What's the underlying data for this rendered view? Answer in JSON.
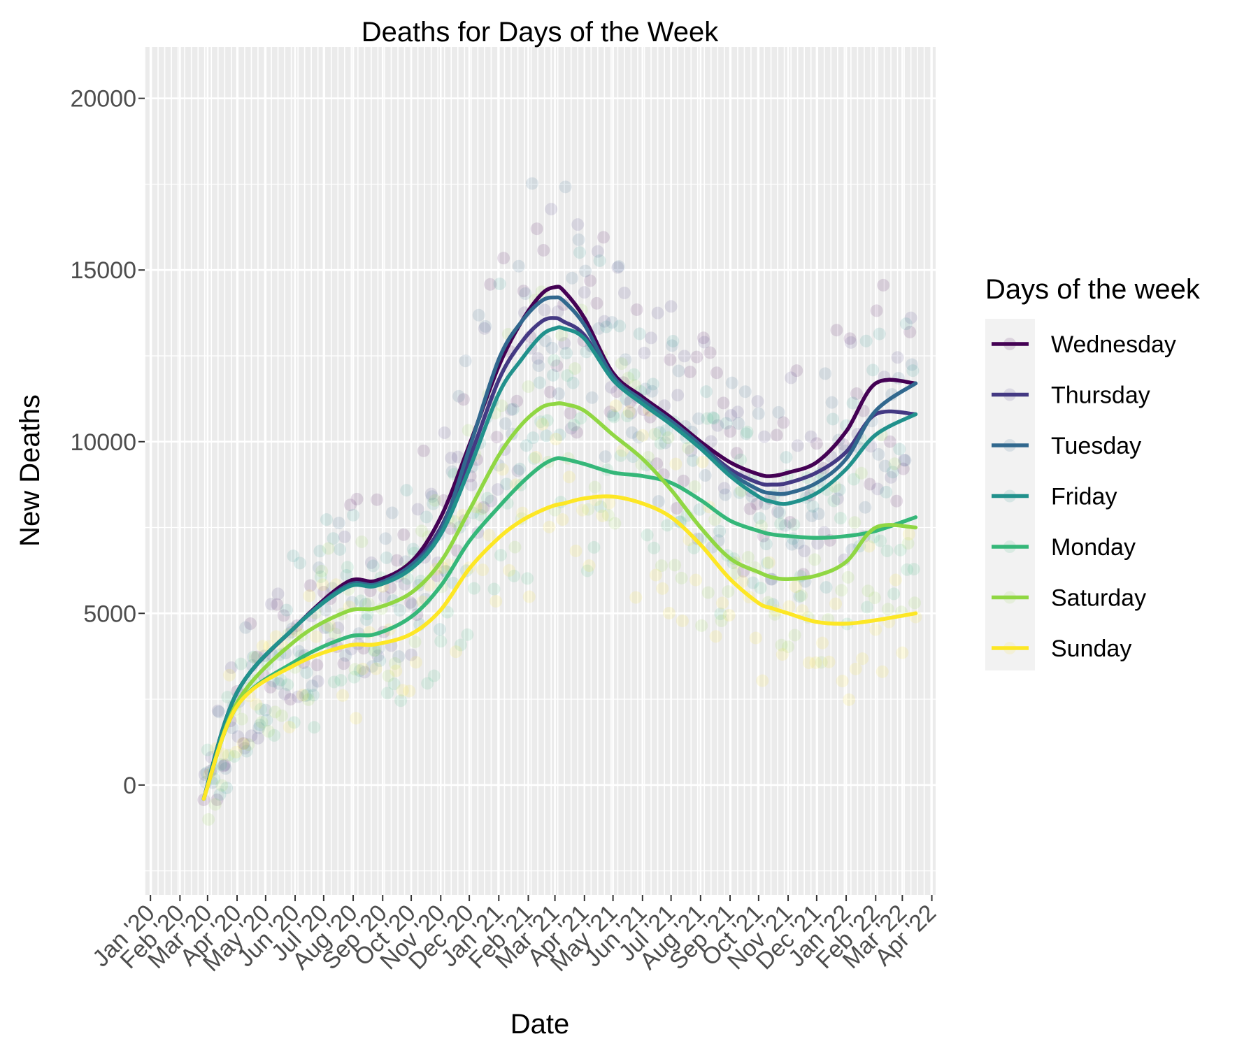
{
  "chart_data": {
    "type": "line",
    "title": "Deaths for Days of the Week",
    "xlabel": "Date",
    "ylabel": "New Deaths",
    "x_tick_labels": [
      "Jan '20",
      "Feb '20",
      "Mar '20",
      "Apr '20",
      "May '20",
      "Jun '20",
      "Jul '20",
      "Aug '20",
      "Sep '20",
      "Oct '20",
      "Nov '20",
      "Dec '20",
      "Jan '21",
      "Feb '21",
      "Mar '21",
      "Apr '21",
      "May '21",
      "Jun '21",
      "Jul '21",
      "Aug '21",
      "Sep '21",
      "Oct '21",
      "Nov '21",
      "Dec '21",
      "Jan '22",
      "Feb '22",
      "Mar '22",
      "Apr '22"
    ],
    "y_ticks": [
      0,
      5000,
      10000,
      15000,
      20000
    ],
    "y_tick_labels": [
      "0",
      "5000",
      "10000",
      "15000",
      "20000"
    ],
    "ylim": [
      -3200,
      21500
    ],
    "xlim": [
      "2019-12-26",
      "2022-04-05"
    ],
    "grid": true,
    "legend_title": "Days of the week",
    "legend_position": "right",
    "series": [
      {
        "name": "Wednesday",
        "color": "#440154",
        "x": [
          "2020-02-26",
          "2020-04-01",
          "2020-06-01",
          "2020-07-25",
          "2020-08-25",
          "2020-10-01",
          "2020-11-01",
          "2020-12-01",
          "2021-01-01",
          "2021-01-25",
          "2021-02-15",
          "2021-03-01",
          "2021-03-10",
          "2021-04-01",
          "2021-05-01",
          "2021-06-01",
          "2021-07-01",
          "2021-08-01",
          "2021-09-01",
          "2021-10-01",
          "2021-10-15",
          "2021-11-01",
          "2021-12-01",
          "2022-01-01",
          "2022-02-01",
          "2022-03-15"
        ],
        "values": [
          -400,
          2700,
          4600,
          5900,
          5950,
          6500,
          7800,
          9900,
          12200,
          13500,
          14300,
          14500,
          14400,
          13600,
          12000,
          11300,
          10700,
          10000,
          9400,
          9050,
          9000,
          9100,
          9400,
          10300,
          11700,
          11700
        ]
      },
      {
        "name": "Thursday",
        "color": "#443983",
        "x": [
          "2020-02-26",
          "2020-04-01",
          "2020-06-01",
          "2020-07-25",
          "2020-08-25",
          "2020-10-01",
          "2020-11-01",
          "2020-12-01",
          "2021-01-01",
          "2021-01-25",
          "2021-02-15",
          "2021-03-01",
          "2021-03-10",
          "2021-04-01",
          "2021-05-01",
          "2021-06-01",
          "2021-07-01",
          "2021-08-01",
          "2021-09-01",
          "2021-10-01",
          "2021-10-15",
          "2021-11-01",
          "2021-12-01",
          "2022-01-01",
          "2022-02-01",
          "2022-03-15"
        ],
        "values": [
          -400,
          2700,
          4600,
          5800,
          5850,
          6400,
          7500,
          9500,
          11800,
          12900,
          13500,
          13600,
          13500,
          13100,
          11800,
          11200,
          10600,
          9900,
          9200,
          8800,
          8750,
          8800,
          9100,
          9700,
          10800,
          10800
        ]
      },
      {
        "name": "Tuesday",
        "color": "#31688e",
        "x": [
          "2020-02-26",
          "2020-04-01",
          "2020-06-01",
          "2020-07-25",
          "2020-08-25",
          "2020-10-01",
          "2020-11-01",
          "2020-12-01",
          "2021-01-01",
          "2021-01-25",
          "2021-02-15",
          "2021-03-01",
          "2021-03-10",
          "2021-04-01",
          "2021-05-01",
          "2021-06-01",
          "2021-07-01",
          "2021-08-01",
          "2021-09-01",
          "2021-10-01",
          "2021-10-15",
          "2021-11-01",
          "2021-12-01",
          "2022-01-01",
          "2022-02-01",
          "2022-03-15"
        ],
        "values": [
          -400,
          2700,
          4600,
          5800,
          5850,
          6400,
          7400,
          9800,
          12400,
          13500,
          14100,
          14200,
          14100,
          13400,
          11900,
          11200,
          10600,
          9900,
          9100,
          8600,
          8500,
          8500,
          8800,
          9500,
          10900,
          11700
        ]
      },
      {
        "name": "Friday",
        "color": "#21918c",
        "x": [
          "2020-02-26",
          "2020-04-01",
          "2020-06-01",
          "2020-07-25",
          "2020-08-25",
          "2020-10-01",
          "2020-11-01",
          "2020-12-01",
          "2021-01-01",
          "2021-01-25",
          "2021-02-15",
          "2021-03-01",
          "2021-03-10",
          "2021-04-01",
          "2021-05-01",
          "2021-06-01",
          "2021-07-01",
          "2021-08-01",
          "2021-09-01",
          "2021-10-01",
          "2021-10-15",
          "2021-11-01",
          "2021-12-01",
          "2022-01-01",
          "2022-02-01",
          "2022-03-15"
        ],
        "values": [
          -400,
          2700,
          4600,
          5750,
          5800,
          6300,
          7300,
          9200,
          11400,
          12400,
          13100,
          13300,
          13300,
          13000,
          11800,
          11100,
          10500,
          9800,
          9000,
          8400,
          8250,
          8200,
          8500,
          9200,
          10200,
          10800
        ]
      },
      {
        "name": "Monday",
        "color": "#35b779",
        "x": [
          "2020-02-26",
          "2020-04-01",
          "2020-06-01",
          "2020-07-25",
          "2020-08-25",
          "2020-10-01",
          "2020-11-01",
          "2020-12-01",
          "2021-01-01",
          "2021-01-25",
          "2021-02-15",
          "2021-03-01",
          "2021-03-10",
          "2021-04-01",
          "2021-05-01",
          "2021-06-01",
          "2021-07-01",
          "2021-08-01",
          "2021-09-01",
          "2021-10-01",
          "2021-10-15",
          "2021-11-01",
          "2021-12-01",
          "2022-01-01",
          "2022-02-01",
          "2022-03-15"
        ],
        "values": [
          -400,
          2300,
          3600,
          4300,
          4400,
          4900,
          5800,
          7100,
          8100,
          8800,
          9300,
          9500,
          9500,
          9350,
          9100,
          9000,
          8800,
          8300,
          7700,
          7400,
          7300,
          7250,
          7200,
          7250,
          7400,
          7800
        ]
      },
      {
        "name": "Saturday",
        "color": "#90d743",
        "x": [
          "2020-02-26",
          "2020-04-01",
          "2020-06-01",
          "2020-07-25",
          "2020-08-25",
          "2020-10-01",
          "2020-11-01",
          "2020-12-01",
          "2021-01-01",
          "2021-01-25",
          "2021-02-15",
          "2021-03-01",
          "2021-03-10",
          "2021-04-01",
          "2021-05-01",
          "2021-06-01",
          "2021-07-01",
          "2021-08-01",
          "2021-09-01",
          "2021-10-01",
          "2021-10-15",
          "2021-11-01",
          "2021-12-01",
          "2022-01-01",
          "2022-02-01",
          "2022-03-15"
        ],
        "values": [
          -400,
          2400,
          4200,
          5050,
          5150,
          5600,
          6500,
          8000,
          9600,
          10500,
          11000,
          11100,
          11100,
          10900,
          10200,
          9500,
          8600,
          7500,
          6600,
          6200,
          6050,
          6000,
          6100,
          6500,
          7500,
          7500
        ]
      },
      {
        "name": "Sunday",
        "color": "#fde725",
        "x": [
          "2020-02-26",
          "2020-04-01",
          "2020-06-01",
          "2020-07-25",
          "2020-08-25",
          "2020-10-01",
          "2020-11-01",
          "2020-12-01",
          "2021-01-01",
          "2021-01-25",
          "2021-02-15",
          "2021-03-01",
          "2021-03-10",
          "2021-04-01",
          "2021-05-01",
          "2021-06-01",
          "2021-07-01",
          "2021-08-01",
          "2021-09-01",
          "2021-10-01",
          "2021-10-15",
          "2021-11-01",
          "2021-12-01",
          "2022-01-01",
          "2022-02-01",
          "2022-03-15"
        ],
        "values": [
          -400,
          2300,
          3500,
          4050,
          4100,
          4400,
          5100,
          6300,
          7200,
          7700,
          8000,
          8150,
          8200,
          8350,
          8400,
          8200,
          7800,
          7000,
          6000,
          5300,
          5150,
          5000,
          4750,
          4700,
          4800,
          5000
        ]
      }
    ]
  }
}
